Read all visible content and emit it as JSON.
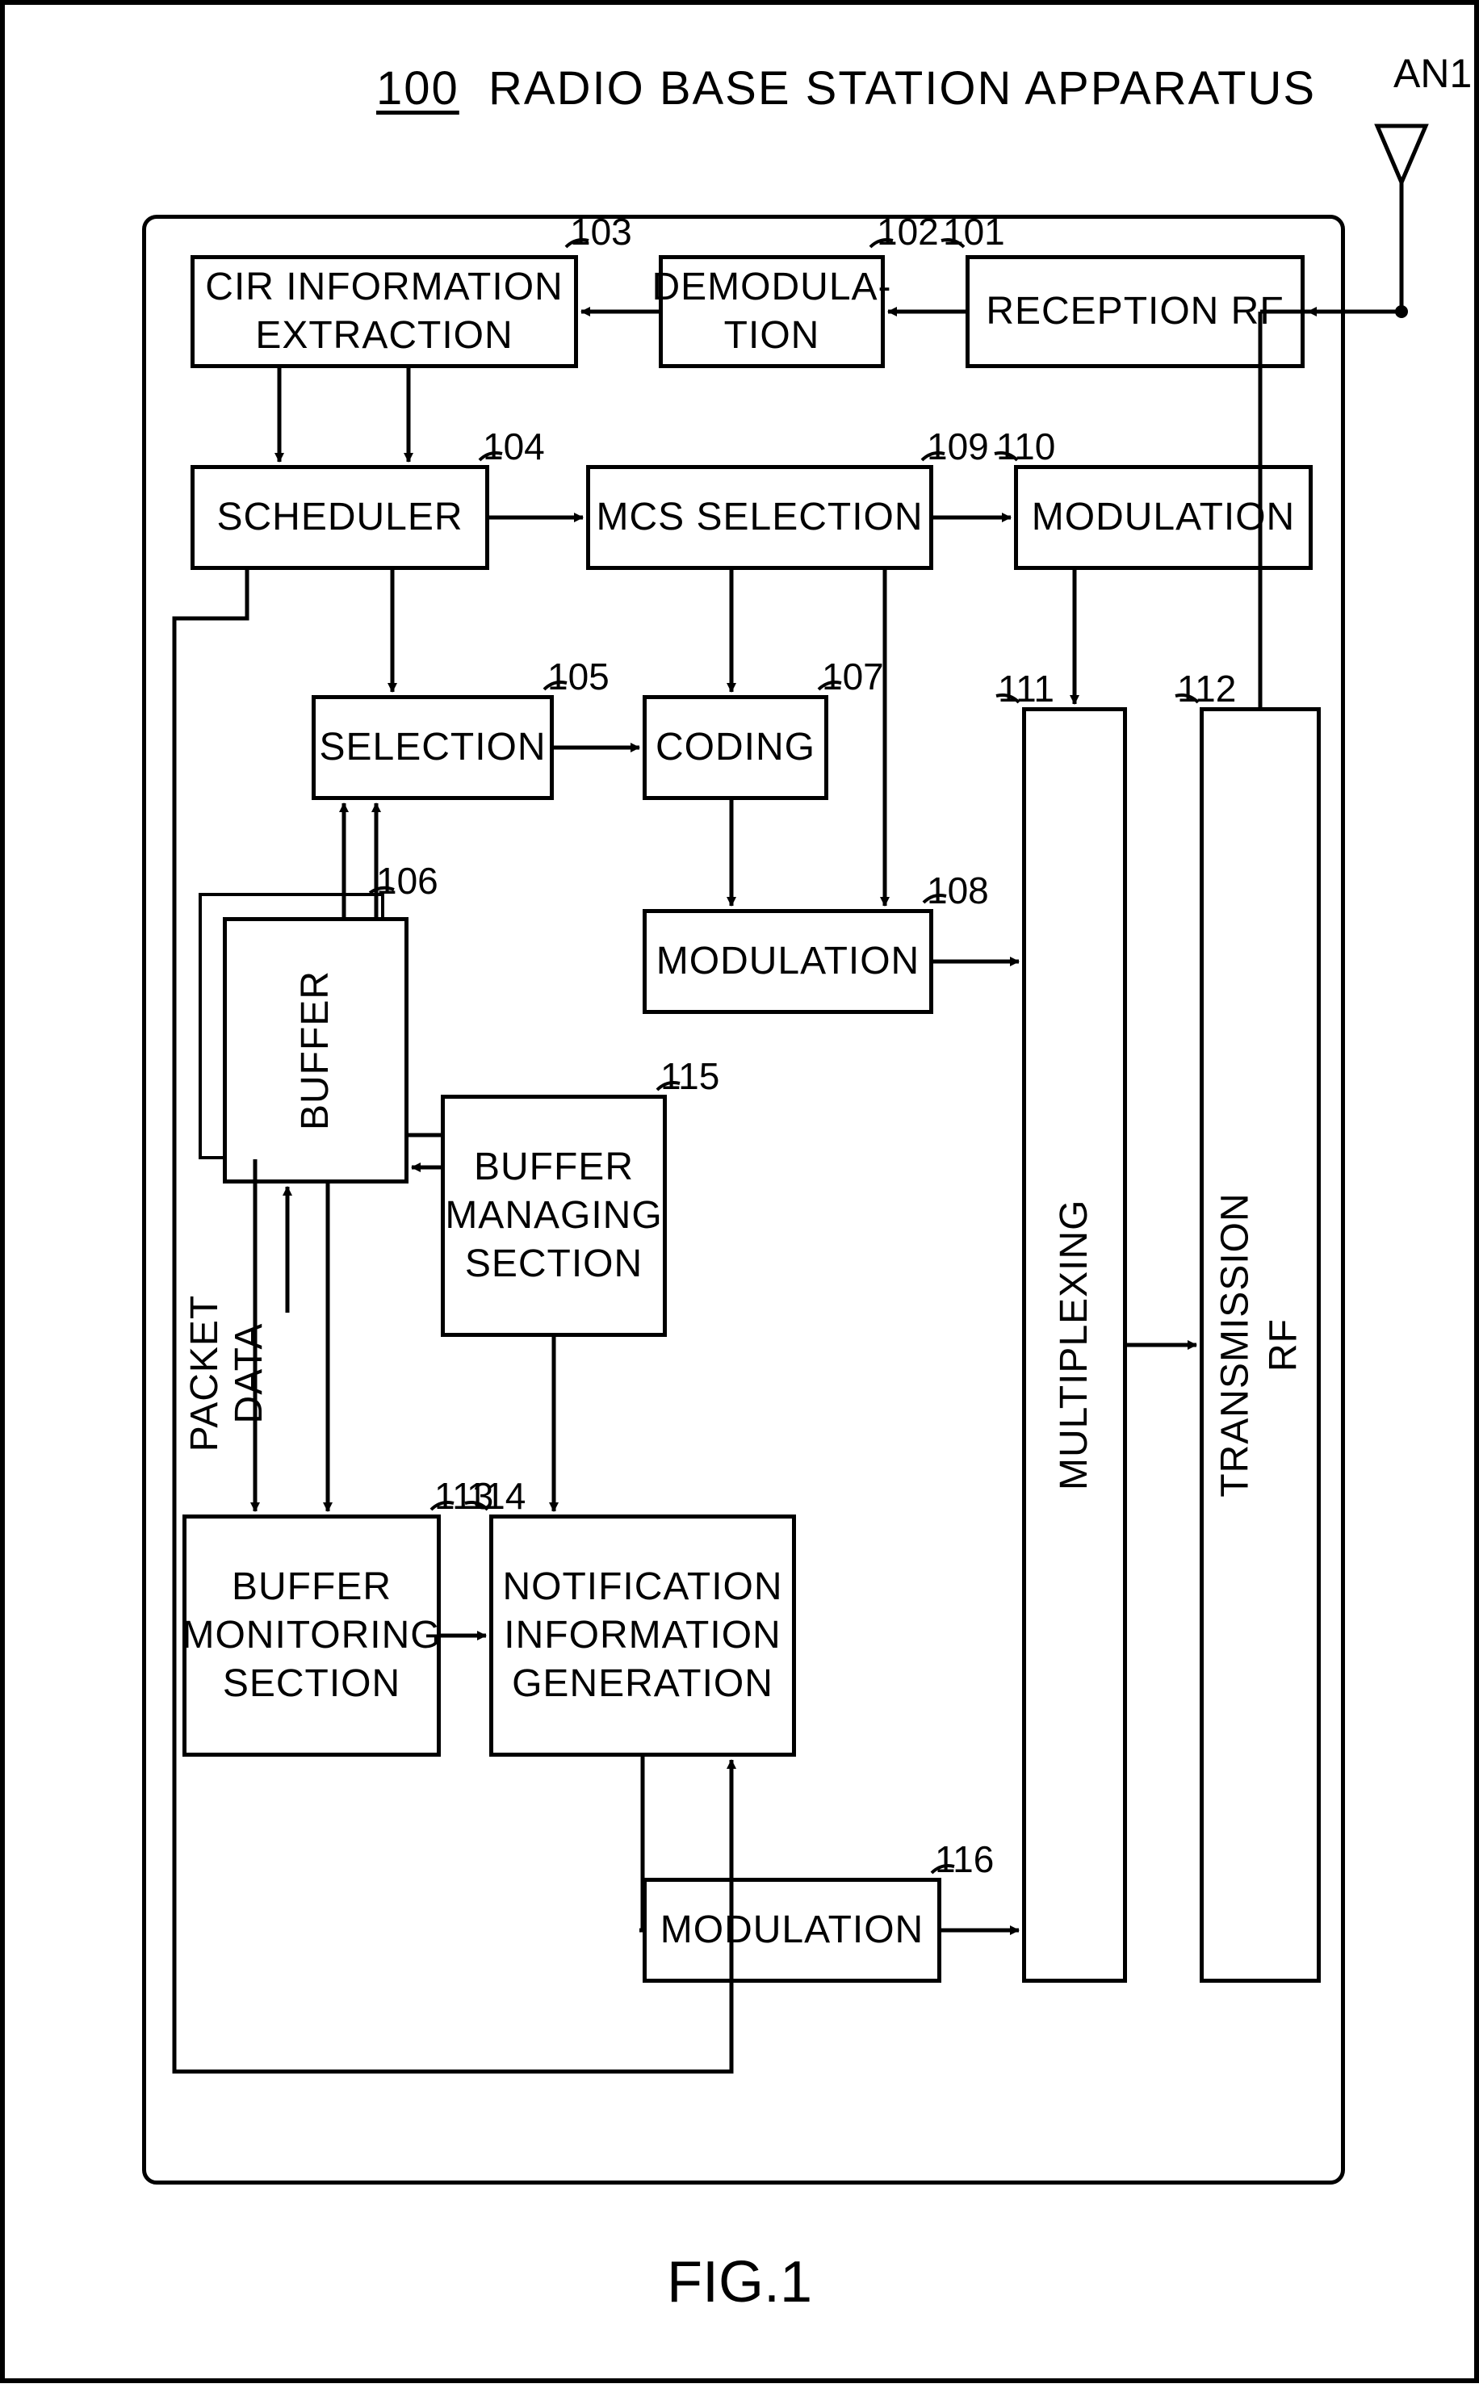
{
  "title_num": "100",
  "title_text": "RADIO BASE STATION APPARATUS",
  "fig_label": "FIG.1",
  "antenna_label": "AN1",
  "packet_label": "PACKET\nDATA",
  "blocks": {
    "reception_rf": {
      "label": "RECEPTION RF",
      "ref": "101"
    },
    "demodulation": {
      "label": "DEMODULA-\nTION",
      "ref": "102"
    },
    "cir": {
      "label": "CIR INFORMATION\nEXTRACTION",
      "ref": "103"
    },
    "scheduler": {
      "label": "SCHEDULER",
      "ref": "104"
    },
    "mcs": {
      "label": "MCS SELECTION",
      "ref": "109"
    },
    "modulation_top": {
      "label": "MODULATION",
      "ref": "110"
    },
    "selection": {
      "label": "SELECTION",
      "ref": "105"
    },
    "coding": {
      "label": "CODING",
      "ref": "107"
    },
    "modulation_mid": {
      "label": "MODULATION",
      "ref": "108"
    },
    "buffer": {
      "label": "BUFFER",
      "ref": "106"
    },
    "buf_manage": {
      "label": "BUFFER\nMANAGING\nSECTION",
      "ref": "115"
    },
    "buf_monitor": {
      "label": "BUFFER\nMONITORING\nSECTION",
      "ref": "113"
    },
    "notif": {
      "label": "NOTIFICATION\nINFORMATION\nGENERATION",
      "ref": "114"
    },
    "modulation_bot": {
      "label": "MODULATION",
      "ref": "116"
    },
    "mux": {
      "label": "MULTIPLEXING",
      "ref": "111"
    },
    "tx_rf": {
      "label": "TRANSMISSION\nRF",
      "ref": "112"
    }
  },
  "colors": {
    "line": "#000000",
    "bg": "#ffffff"
  },
  "stroke_width": 5
}
